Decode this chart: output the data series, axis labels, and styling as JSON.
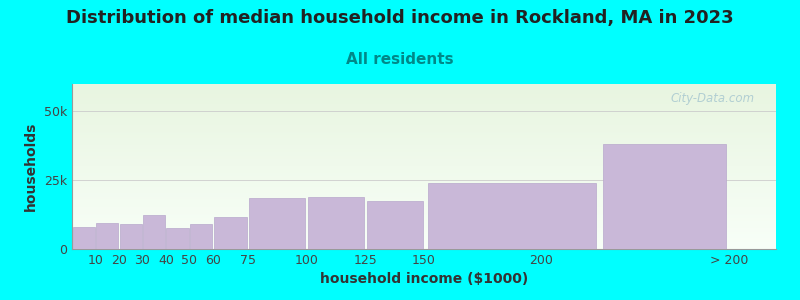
{
  "title": "Distribution of median household income in Rockland, MA in 2023",
  "subtitle": "All residents",
  "xlabel": "household income ($1000)",
  "ylabel": "households",
  "background_color": "#00FFFF",
  "plot_bg_top": "#e8f5e0",
  "plot_bg_bottom": "#f8fff8",
  "bar_color": "#c9b8d8",
  "bar_edge_color": "#b8a8cc",
  "categories": [
    "10",
    "20",
    "30",
    "40",
    "50",
    "60",
    "75",
    "100",
    "125",
    "150",
    "200",
    "> 200"
  ],
  "bar_lefts": [
    0,
    10,
    20,
    30,
    40,
    50,
    60,
    75,
    100,
    125,
    150,
    225
  ],
  "bar_widths": [
    10,
    10,
    10,
    10,
    10,
    10,
    15,
    25,
    25,
    25,
    75,
    55
  ],
  "values": [
    8000,
    9500,
    9200,
    12500,
    7800,
    9000,
    11500,
    18500,
    19000,
    17500,
    24000,
    38000
  ],
  "xtick_positions": [
    10,
    20,
    30,
    40,
    50,
    60,
    75,
    100,
    125,
    150,
    200,
    280
  ],
  "xtick_labels": [
    "10",
    "20",
    "30",
    "40",
    "50",
    "60",
    "75",
    "100",
    "125",
    "150",
    "200",
    "> 200"
  ],
  "yticks": [
    0,
    25000,
    50000
  ],
  "ytick_labels": [
    "0",
    "25k",
    "50k"
  ],
  "ylim": [
    0,
    60000
  ],
  "xlim": [
    0,
    300
  ],
  "title_fontsize": 13,
  "subtitle_fontsize": 11,
  "axis_label_fontsize": 10,
  "tick_fontsize": 9,
  "watermark_text": "City-Data.com",
  "watermark_color": "#a8c8d0",
  "title_color": "#222222",
  "subtitle_color": "#008888",
  "axis_label_color": "#333333",
  "tick_color": "#444444",
  "grid_color": "#cccccc"
}
